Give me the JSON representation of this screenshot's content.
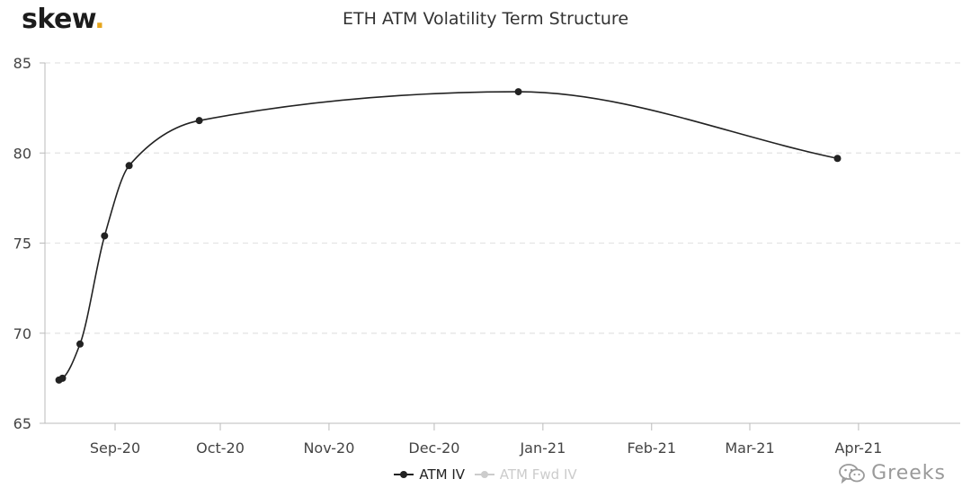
{
  "logo": {
    "text": "skew",
    "dot": "."
  },
  "watermark": {
    "text": "Greeks",
    "icon": "wechat-icon"
  },
  "colors": {
    "series": "#222222",
    "inactive": "#cccccc",
    "grid": "#e4e4e4",
    "axis": "#bbbbbb",
    "logo_dot": "#e6a51c"
  },
  "chart_data": {
    "type": "line",
    "title": "ETH ATM Volatility Term Structure",
    "xlabel": "",
    "ylabel": "",
    "x_type": "date",
    "xlim": [
      "2020-08-12",
      "2021-04-30"
    ],
    "ylim": [
      65,
      85
    ],
    "yticks": [
      65,
      70,
      75,
      80,
      85
    ],
    "x_ticks": [
      {
        "date": "2020-09-01",
        "label": "Sep-20"
      },
      {
        "date": "2020-10-01",
        "label": "Oct-20"
      },
      {
        "date": "2020-11-01",
        "label": "Nov-20"
      },
      {
        "date": "2020-12-01",
        "label": "Dec-20"
      },
      {
        "date": "2021-01-01",
        "label": "Jan-21"
      },
      {
        "date": "2021-02-01",
        "label": "Feb-21"
      },
      {
        "date": "2021-03-01",
        "label": "Mar-21"
      },
      {
        "date": "2021-04-01",
        "label": "Apr-21"
      }
    ],
    "grid": "horizontal dashed",
    "legend_position": "bottom-center",
    "series": [
      {
        "name": "ATM IV",
        "visible": true,
        "points": [
          {
            "x": "2020-08-16",
            "y": 67.4
          },
          {
            "x": "2020-08-17",
            "y": 67.5
          },
          {
            "x": "2020-08-22",
            "y": 69.4
          },
          {
            "x": "2020-08-29",
            "y": 75.4
          },
          {
            "x": "2020-09-05",
            "y": 79.3
          },
          {
            "x": "2020-09-25",
            "y": 81.8
          },
          {
            "x": "2020-12-25",
            "y": 83.4
          },
          {
            "x": "2021-03-26",
            "y": 79.7
          }
        ]
      },
      {
        "name": "ATM Fwd IV",
        "visible": false,
        "points": []
      }
    ]
  }
}
